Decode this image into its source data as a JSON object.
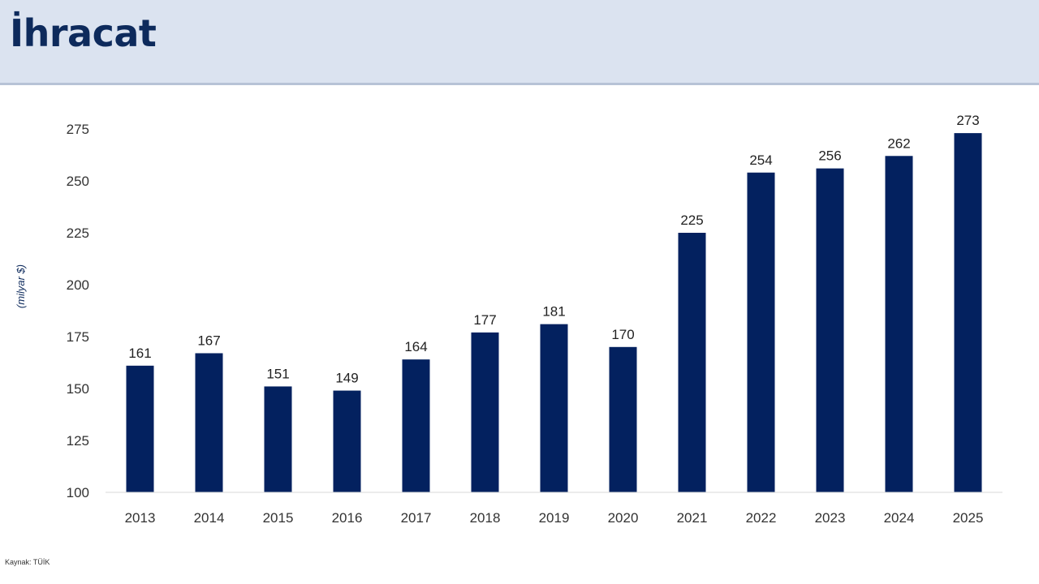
{
  "header": {
    "title": "İhracat"
  },
  "source": "Kaynak: TÜİK",
  "colors": {
    "bar": "#03215f",
    "header_bg": "#dbe3f0",
    "title": "#0d2a5c"
  },
  "chart_data": {
    "type": "bar",
    "title": "",
    "xlabel": "",
    "ylabel": "(milyar $)",
    "categories": [
      "2013",
      "2014",
      "2015",
      "2016",
      "2017",
      "2018",
      "2019",
      "2020",
      "2021",
      "2022",
      "2023",
      "2024",
      "2025"
    ],
    "values": [
      161,
      167,
      151,
      149,
      164,
      177,
      181,
      170,
      225,
      254,
      256,
      262,
      273
    ],
    "data_labels": [
      "161",
      "167",
      "151",
      "149",
      "164",
      "177",
      "181",
      "170",
      "225",
      "254",
      "256",
      "262",
      "273"
    ],
    "ylim": [
      100,
      275
    ],
    "yticks": [
      100,
      125,
      150,
      175,
      200,
      225,
      250,
      275
    ],
    "grid": false,
    "legend": "none"
  }
}
